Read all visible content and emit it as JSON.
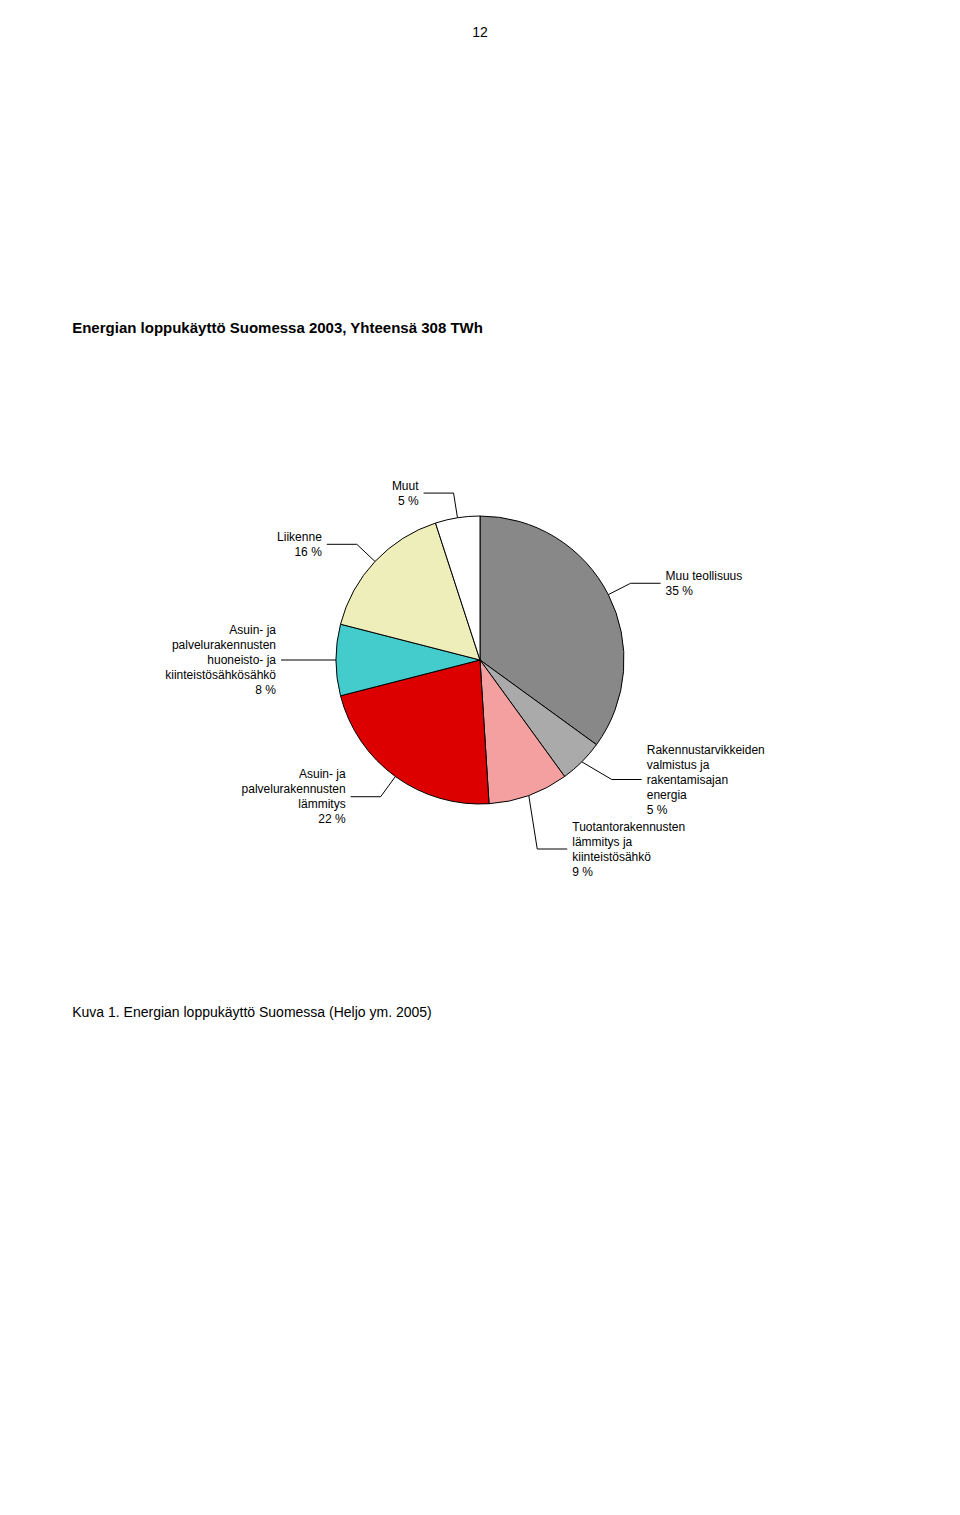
{
  "chart_data": {
    "type": "pie",
    "title": "Energian loppukäyttö Suomessa 2003, Yhteensä 308 TWh",
    "annotations": [
      "12",
      "Kuva 1. Energian loppukäyttö Suomessa (Heljo ym. 2005)"
    ],
    "categories": [
      "Muu teollisuus",
      "Rakennustarvikkeiden\nvalmistus ja\nrakentamisajan\nenergia",
      "Tuotantorakennusten\nlämmitys ja\nkiinteistösähkö",
      "Asuin- ja\npalvelurakennusten\nlämmitys",
      "Asuin- ja\npalvelurakennusten\nhuoneisto- ja\nkiinteistösähkösähkö",
      "Liikenne",
      "Muut"
    ],
    "values": [
      35,
      5,
      9,
      22,
      8,
      16,
      5
    ],
    "value_labels": [
      "35 %",
      "5 %",
      "9 %",
      "22 %",
      "8 %",
      "16 %",
      "5 %"
    ],
    "data_labels": true,
    "colors": [
      "#888888",
      "#aaaaaa",
      "#f4a0a0",
      "#dd0000",
      "#44cccc",
      "#eeeebb",
      "#ffffff"
    ],
    "legend": false
  }
}
